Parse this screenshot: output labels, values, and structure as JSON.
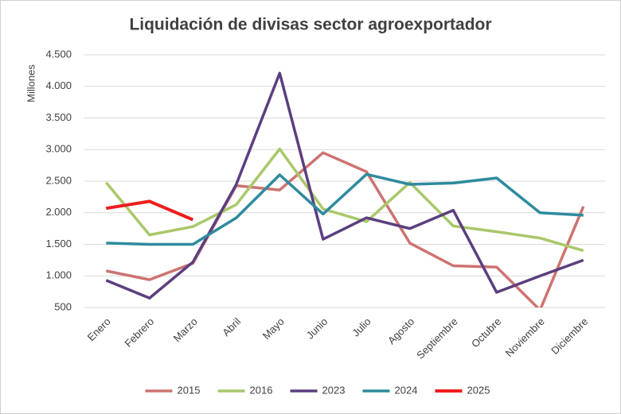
{
  "chart_data": {
    "type": "line",
    "title": "Liquidación de divisas sector agroexportador",
    "y_label": "Millones",
    "categories": [
      "Enero",
      "Febrero",
      "Marzo",
      "Abril",
      "Mayo",
      "Junio",
      "Julio",
      "Agosto",
      "Septiembre",
      "Octubre",
      "Noviembre",
      "Diciembre"
    ],
    "series": [
      {
        "name": "2015",
        "color": "#cd7371",
        "values": [
          1080,
          940,
          1200,
          2430,
          2360,
          2950,
          2650,
          1520,
          1160,
          1140,
          460,
          2100
        ]
      },
      {
        "name": "2016",
        "color": "#a9c86a",
        "values": [
          2480,
          1650,
          1780,
          2130,
          3010,
          2060,
          1860,
          2480,
          1790,
          1700,
          1600,
          1400
        ]
      },
      {
        "name": "2023",
        "color": "#5b3f7f",
        "values": [
          930,
          650,
          1220,
          2450,
          4210,
          1580,
          1920,
          1750,
          2040,
          740,
          1000,
          1250
        ]
      },
      {
        "name": "2024",
        "color": "#2e8a9e",
        "values": [
          1520,
          1500,
          1500,
          1920,
          2600,
          1980,
          2610,
          2450,
          2470,
          2550,
          2000,
          1960
        ]
      },
      {
        "name": "2025",
        "color": "#ee1c1c",
        "values": [
          2070,
          2180,
          1890,
          null,
          null,
          null,
          null,
          null,
          null,
          null,
          null,
          null
        ]
      }
    ],
    "ylim": [
      500,
      4500
    ],
    "yticks": [
      500,
      {
        "value": 1000,
        "label": "1.000"
      },
      {
        "value": 1500,
        "label": "1.500"
      },
      {
        "value": 2000,
        "label": "2.000"
      },
      {
        "value": 2500,
        "label": "2.500"
      },
      {
        "value": 3000,
        "label": "3.000"
      },
      {
        "value": 3500,
        "label": "3.500"
      },
      {
        "value": 4000,
        "label": "4.000"
      },
      {
        "value": 4500,
        "label": "4.500"
      }
    ],
    "grid": true,
    "legend": "bottom"
  }
}
